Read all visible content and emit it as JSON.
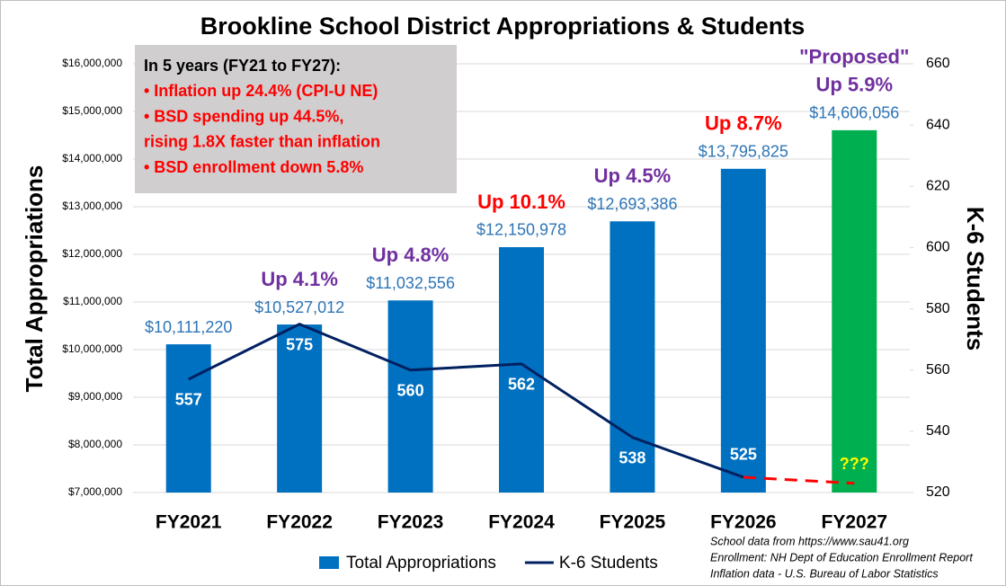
{
  "chart_data": {
    "type": "bar",
    "title": "Brookline School District Appropriations & Students",
    "ylabel": "Total Appropriations",
    "y2label": "K-6 Students",
    "categories": [
      "FY2021",
      "FY2022",
      "FY2023",
      "FY2024",
      "FY2025",
      "FY2026",
      "FY2027"
    ],
    "series": [
      {
        "name": "Total Appropriations",
        "type": "bar",
        "color": "#0070c0",
        "colors": [
          "#0070c0",
          "#0070c0",
          "#0070c0",
          "#0070c0",
          "#0070c0",
          "#0070c0",
          "#00b050"
        ],
        "values": [
          10111220,
          10527012,
          11032556,
          12150978,
          12693386,
          13795825,
          14606056
        ],
        "value_labels": [
          "$10,111,220",
          "$10,527,012",
          "$11,032,556",
          "$12,150,978",
          "$12,693,386",
          "$13,795,825",
          "$14,606,056"
        ],
        "label_color": "#2e75b6"
      },
      {
        "name": "K-6 Students",
        "type": "line",
        "axis": "y2",
        "color": "#002060",
        "values": [
          557,
          575,
          560,
          562,
          538,
          525,
          null
        ],
        "label_color": "#ffffff"
      },
      {
        "type": "line",
        "axis": "y2",
        "color": "#ff0000",
        "dashed": true,
        "values": [
          null,
          null,
          null,
          null,
          null,
          525,
          523
        ]
      }
    ],
    "growth_labels": [
      null,
      "Up 4.1%",
      "Up 4.8%",
      "Up 10.1%",
      "Up 4.5%",
      "Up 8.7%",
      "Up 5.9%"
    ],
    "growth_colors": [
      null,
      "#7030a0",
      "#7030a0",
      "#ff0000",
      "#7030a0",
      "#ff0000",
      "#7030a0"
    ],
    "proposed_label": {
      "text": "\"Proposed\"",
      "color": "#7030a0"
    },
    "projection_label": {
      "text": "???",
      "color": "#ffff00"
    },
    "summary": [
      {
        "text": "In 5 years (FY21 to FY27):",
        "color": "#000000"
      },
      {
        "text": "• Inflation up 24.4% (CPI-U NE)",
        "color": "#ff0000"
      },
      {
        "text": "• BSD spending up 44.5%,",
        "color": "#ff0000"
      },
      {
        "text": "rising 1.8X faster than inflation",
        "color": "#ff0000"
      },
      {
        "text": "• BSD enrollment down 5.8%",
        "color": "#ff0000"
      }
    ],
    "notes": [
      "School data from https://www.sau41.org",
      "Enrollment:  NH Dept of Education Enrollment Report",
      "Inflation data - U.S. Bureau of Labor Statistics"
    ],
    "ylim": [
      7000000,
      16000000
    ],
    "yticks": [
      {
        "value": 7000000,
        "label": "$7,000,000"
      },
      {
        "value": 8000000,
        "label": "$8,000,000"
      },
      {
        "value": 9000000,
        "label": "$9,000,000"
      },
      {
        "value": 10000000,
        "label": "$10,000,000"
      },
      {
        "value": 11000000,
        "label": "$11,000,000"
      },
      {
        "value": 12000000,
        "label": "$12,000,000"
      },
      {
        "value": 13000000,
        "label": "$13,000,000"
      },
      {
        "value": 14000000,
        "label": "$14,000,000"
      },
      {
        "value": 15000000,
        "label": "$15,000,000"
      },
      {
        "value": 16000000,
        "label": "$16,000,000"
      }
    ],
    "y2lim": [
      520,
      660
    ],
    "y2ticks": [
      520,
      540,
      560,
      580,
      600,
      620,
      640,
      660
    ],
    "grid": true,
    "legend": "bottom"
  }
}
